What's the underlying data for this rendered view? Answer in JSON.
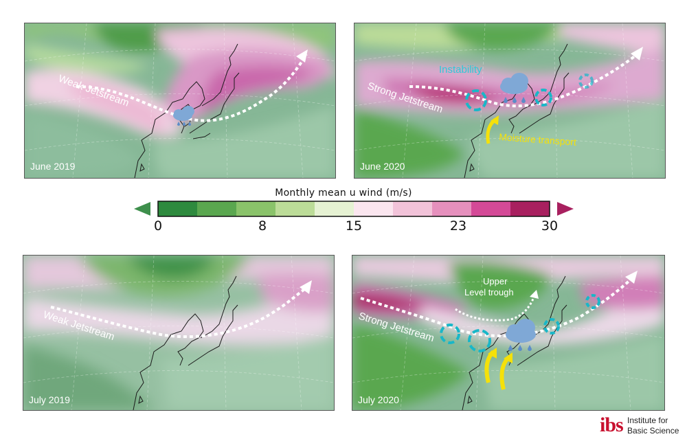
{
  "panels": {
    "june2019": {
      "label": "June 2019",
      "jet_label": "Weak Jetstream"
    },
    "june2020": {
      "label": "June 2020",
      "jet_label": "Strong Jetstream",
      "instability": "Instability",
      "moisture": "Moisture transport"
    },
    "july2019": {
      "label": "July 2019",
      "jet_label": "Weak Jetstream"
    },
    "july2020": {
      "label": "July 2020",
      "jet_label": "Strong Jetstream",
      "trough_line1": "Upper",
      "trough_line2": "Level trough"
    }
  },
  "colorbar": {
    "title": "Monthly mean u wind (m/s)",
    "ticks": [
      "0",
      "8",
      "15",
      "23",
      "30"
    ],
    "tick_values": [
      0,
      8,
      15,
      23,
      30
    ],
    "range": [
      0,
      30
    ],
    "colors": [
      "#2e8a3e",
      "#5aa74f",
      "#8ac36a",
      "#bcdc98",
      "#e6f2d3",
      "#fbe6ef",
      "#f2c3d9",
      "#e690bd",
      "#d44a97",
      "#a8205f"
    ],
    "under_color": "#3e8f4c",
    "over_color": "#a8205f"
  },
  "logo": {
    "mark": "ibs",
    "line1": "Institute for",
    "line2": "Basic Science"
  }
}
